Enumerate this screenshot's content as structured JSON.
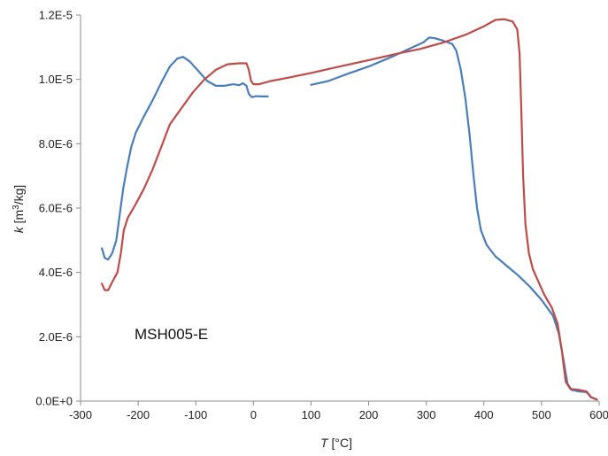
{
  "chart_data": {
    "type": "line",
    "annotation": "MSH005-E",
    "xlabel": {
      "italic": "T",
      "rest": " [°C]"
    },
    "ylabel": {
      "italic": "k",
      "rest_pre": " [m",
      "sup": "3",
      "rest_post": "/kg]"
    },
    "xlim": [
      -300,
      600
    ],
    "ylim": [
      0,
      1.2e-05
    ],
    "x_ticks": [
      -300,
      -200,
      -100,
      0,
      100,
      200,
      300,
      400,
      500,
      600
    ],
    "x_tick_labels": [
      "-300",
      "-200",
      "-100",
      "0",
      "100",
      "200",
      "300",
      "400",
      "500",
      "600"
    ],
    "y_ticks": [
      0,
      2e-06,
      4e-06,
      6e-06,
      8e-06,
      1e-05,
      1.2e-05
    ],
    "y_tick_labels": [
      "0.0E+0",
      "2.0E-6",
      "4.0E-6",
      "6.0E-6",
      "8.0E-6",
      "1.0E-5",
      "1.2E-5"
    ],
    "grid": false,
    "legend": "none",
    "series": [
      {
        "color": "#4a7ebb",
        "segments": [
          [
            [
              -263,
              4.75e-06
            ],
            [
              -258,
              4.45e-06
            ],
            [
              -252,
              4.4e-06
            ],
            [
              -245,
              4.6e-06
            ],
            [
              -238,
              5e-06
            ],
            [
              -232,
              5.8e-06
            ],
            [
              -226,
              6.6e-06
            ],
            [
              -220,
              7.2e-06
            ],
            [
              -212,
              7.9e-06
            ],
            [
              -204,
              8.35e-06
            ],
            [
              -190,
              8.85e-06
            ],
            [
              -175,
              9.35e-06
            ],
            [
              -160,
              9.9e-06
            ],
            [
              -145,
              1.04e-05
            ],
            [
              -132,
              1.065e-05
            ],
            [
              -122,
              1.07e-05
            ],
            [
              -110,
              1.055e-05
            ],
            [
              -95,
              1.025e-05
            ],
            [
              -80,
              9.95e-06
            ],
            [
              -65,
              9.8e-06
            ],
            [
              -50,
              9.8e-06
            ],
            [
              -35,
              9.85e-06
            ],
            [
              -25,
              9.82e-06
            ],
            [
              -18,
              9.88e-06
            ],
            [
              -12,
              9.8e-06
            ],
            [
              -8,
              9.55e-06
            ],
            [
              -3,
              9.45e-06
            ],
            [
              5,
              9.48e-06
            ],
            [
              15,
              9.47e-06
            ],
            [
              25,
              9.47e-06
            ]
          ],
          [
            [
              100,
              9.83e-06
            ],
            [
              130,
              9.95e-06
            ],
            [
              160,
              1.015e-05
            ],
            [
              200,
              1.04e-05
            ],
            [
              240,
              1.07e-05
            ],
            [
              270,
              1.095e-05
            ],
            [
              295,
              1.115e-05
            ],
            [
              305,
              1.13e-05
            ],
            [
              315,
              1.128e-05
            ],
            [
              330,
              1.12e-05
            ],
            [
              345,
              1.11e-05
            ],
            [
              352,
              1.09e-05
            ],
            [
              360,
              1.03e-05
            ],
            [
              368,
              9.4e-06
            ],
            [
              375,
              8.3e-06
            ],
            [
              382,
              7e-06
            ],
            [
              388,
              6e-06
            ],
            [
              395,
              5.3e-06
            ],
            [
              405,
              4.85e-06
            ],
            [
              420,
              4.5e-06
            ],
            [
              440,
              4.2e-06
            ],
            [
              460,
              3.9e-06
            ],
            [
              480,
              3.55e-06
            ],
            [
              500,
              3.15e-06
            ],
            [
              520,
              2.65e-06
            ],
            [
              530,
              2.1e-06
            ],
            [
              538,
              1.3e-06
            ],
            [
              545,
              5.5e-07
            ],
            [
              552,
              3.5e-07
            ],
            [
              565,
              3e-07
            ],
            [
              578,
              2.8e-07
            ],
            [
              586,
              1.2e-07
            ],
            [
              596,
              5e-08
            ]
          ]
        ]
      },
      {
        "color": "#be4b48",
        "segments": [
          [
            [
              -263,
              3.65e-06
            ],
            [
              -258,
              3.45e-06
            ],
            [
              -252,
              3.45e-06
            ],
            [
              -245,
              3.7e-06
            ],
            [
              -236,
              4e-06
            ],
            [
              -230,
              4.6e-06
            ],
            [
              -225,
              5.3e-06
            ],
            [
              -218,
              5.7e-06
            ],
            [
              -205,
              6.1e-06
            ],
            [
              -190,
              6.6e-06
            ],
            [
              -175,
              7.2e-06
            ],
            [
              -160,
              7.9e-06
            ],
            [
              -145,
              8.6e-06
            ],
            [
              -125,
              9.1e-06
            ],
            [
              -105,
              9.6e-06
            ],
            [
              -85,
              1e-05
            ],
            [
              -65,
              1.03e-05
            ],
            [
              -45,
              1.047e-05
            ],
            [
              -25,
              1.05e-05
            ],
            [
              -12,
              1.05e-05
            ],
            [
              -8,
              1.03e-05
            ],
            [
              -4,
              9.95e-06
            ],
            [
              0,
              9.85e-06
            ],
            [
              10,
              9.85e-06
            ],
            [
              30,
              9.95e-06
            ],
            [
              60,
              1.005e-05
            ],
            [
              100,
              1.02e-05
            ],
            [
              150,
              1.04e-05
            ],
            [
              200,
              1.06e-05
            ],
            [
              250,
              1.08e-05
            ],
            [
              290,
              1.095e-05
            ],
            [
              330,
              1.115e-05
            ],
            [
              370,
              1.14e-05
            ],
            [
              400,
              1.165e-05
            ],
            [
              420,
              1.185e-05
            ],
            [
              435,
              1.187e-05
            ],
            [
              450,
              1.18e-05
            ],
            [
              458,
              1.155e-05
            ],
            [
              462,
              1.08e-05
            ],
            [
              465,
              9e-06
            ],
            [
              468,
              7e-06
            ],
            [
              472,
              5.5e-06
            ],
            [
              478,
              4.6e-06
            ],
            [
              485,
              4.1e-06
            ],
            [
              495,
              3.7e-06
            ],
            [
              505,
              3.3e-06
            ],
            [
              518,
              2.9e-06
            ],
            [
              528,
              2.4e-06
            ],
            [
              535,
              1.6e-06
            ],
            [
              542,
              6e-07
            ],
            [
              550,
              3.8e-07
            ],
            [
              565,
              3.5e-07
            ],
            [
              578,
              3e-07
            ],
            [
              586,
              1.2e-07
            ],
            [
              596,
              5e-08
            ]
          ]
        ]
      }
    ]
  }
}
